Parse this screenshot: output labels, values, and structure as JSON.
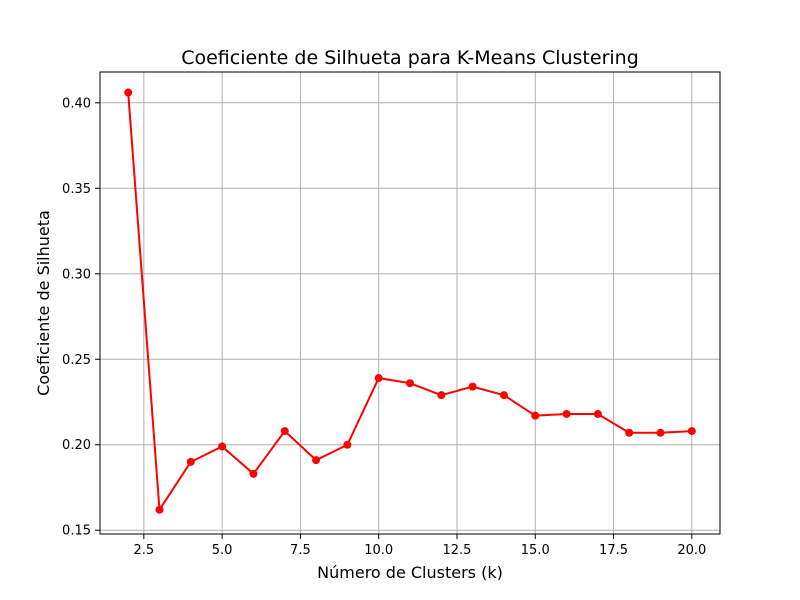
{
  "chart_data": {
    "type": "line",
    "title": "Coeficiente de Silhueta para K-Means Clustering",
    "xlabel": "Número de Clusters (k)",
    "ylabel": "Coeficiente de Silhueta",
    "x": [
      2,
      3,
      4,
      5,
      6,
      7,
      8,
      9,
      10,
      11,
      12,
      13,
      14,
      15,
      16,
      17,
      18,
      19,
      20
    ],
    "series": [
      {
        "name": "Coeficiente de Silhueta",
        "values": [
          0.406,
          0.162,
          0.19,
          0.199,
          0.183,
          0.208,
          0.191,
          0.2,
          0.239,
          0.236,
          0.229,
          0.234,
          0.229,
          0.217,
          0.218,
          0.218,
          0.207,
          0.207,
          0.208
        ],
        "color": "#ff0000",
        "marker": "circle"
      }
    ],
    "xlim": [
      1.1,
      20.9
    ],
    "ylim": [
      0.1478,
      0.418
    ],
    "xticks": [
      2.5,
      5.0,
      7.5,
      10.0,
      12.5,
      15.0,
      17.5,
      20.0
    ],
    "xtick_labels": [
      "2.5",
      "5.0",
      "7.5",
      "10.0",
      "12.5",
      "15.0",
      "17.5",
      "20.0"
    ],
    "yticks": [
      0.15,
      0.2,
      0.25,
      0.3,
      0.35,
      0.4
    ],
    "ytick_labels": [
      "0.15",
      "0.20",
      "0.25",
      "0.30",
      "0.35",
      "0.40"
    ],
    "grid": true,
    "colors": {
      "line": "#ff0000",
      "grid": "#b0b0b0",
      "axes": "#000000",
      "background": "#ffffff"
    }
  }
}
